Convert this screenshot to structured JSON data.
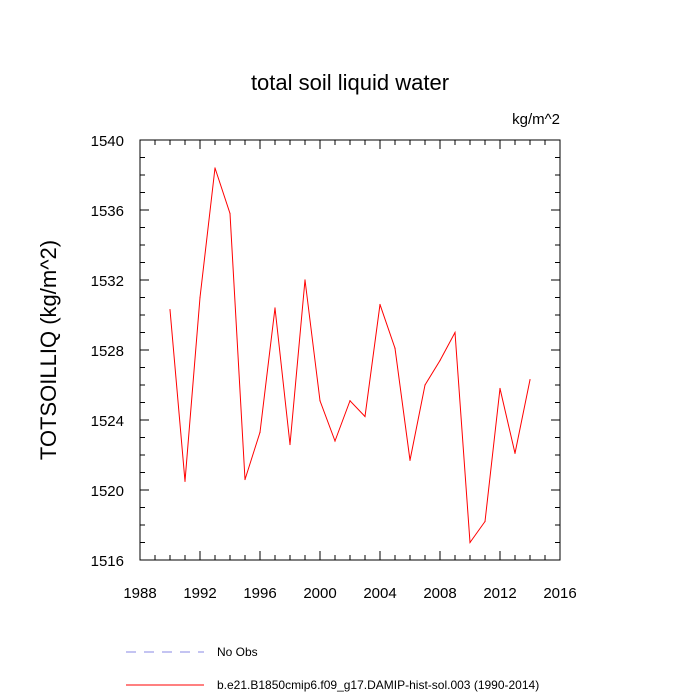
{
  "chart_data": {
    "type": "line",
    "title": "total soil liquid water",
    "units": "kg/m^2",
    "ylabel": "TOTSOILLIQ  (kg/m^2)",
    "xlabel": "",
    "xlim": [
      1988,
      2016
    ],
    "ylim": [
      1516,
      1540
    ],
    "xticks": [
      1988,
      1992,
      1996,
      2000,
      2004,
      2008,
      2012,
      2016
    ],
    "yticks": [
      1516,
      1520,
      1524,
      1528,
      1532,
      1536,
      1540
    ],
    "grid": false,
    "series": [
      {
        "name": "b.e21.B1850cmip6.f09_g17.DAMIP-hist-sol.003 (1990-2014)",
        "color": "#ff0000",
        "x": [
          1990,
          1991,
          1992,
          1993,
          1994,
          1995,
          1996,
          1997,
          1998,
          1999,
          2000,
          2001,
          2002,
          2003,
          2004,
          2005,
          2006,
          2007,
          2008,
          2009,
          2010,
          2011,
          2012,
          2013,
          2014
        ],
        "y": [
          1530.3,
          1520.5,
          1531.0,
          1538.4,
          1535.8,
          1520.6,
          1523.3,
          1530.4,
          1522.6,
          1532.0,
          1525.1,
          1522.8,
          1525.1,
          1524.2,
          1530.6,
          1528.1,
          1521.7,
          1526.0,
          1527.4,
          1529.0,
          1517.0,
          1518.2,
          1525.8,
          1522.1,
          1526.3
        ]
      }
    ],
    "legend": {
      "placement": "bottom",
      "entries": [
        {
          "label": "No Obs",
          "color": "#8a8ae6",
          "style": "dashed"
        },
        {
          "label": "b.e21.B1850cmip6.f09_g17.DAMIP-hist-sol.003 (1990-2014)",
          "color": "#ff0000",
          "style": "solid"
        }
      ]
    }
  }
}
